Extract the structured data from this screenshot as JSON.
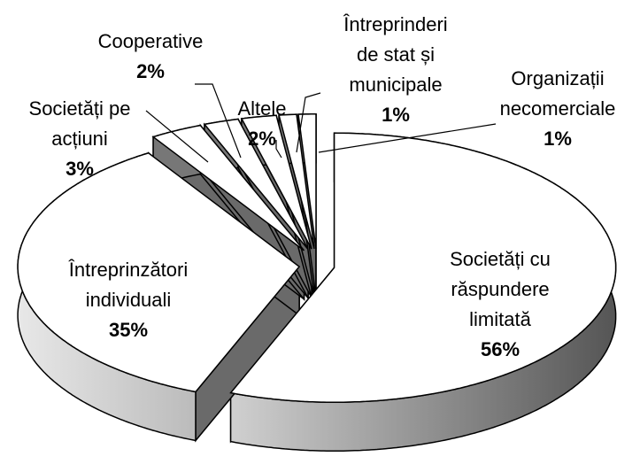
{
  "chart_data": {
    "type": "pie3d",
    "categories": [
      "Societăți cu\nrăspundere\nlimitată",
      "Întreprinzători\nindividuali",
      "Societăți pe\nacțiuni",
      "Cooperative",
      "Altele",
      "Întreprinderi\nde stat și\nmunicipale",
      "Organizații\nnecomerciale"
    ],
    "values": [
      56,
      35,
      3,
      2,
      2,
      1,
      1
    ],
    "value_labels": [
      "56%",
      "35%",
      "3%",
      "2%",
      "2%",
      "1%",
      "1%"
    ],
    "color": "#ffffff"
  }
}
